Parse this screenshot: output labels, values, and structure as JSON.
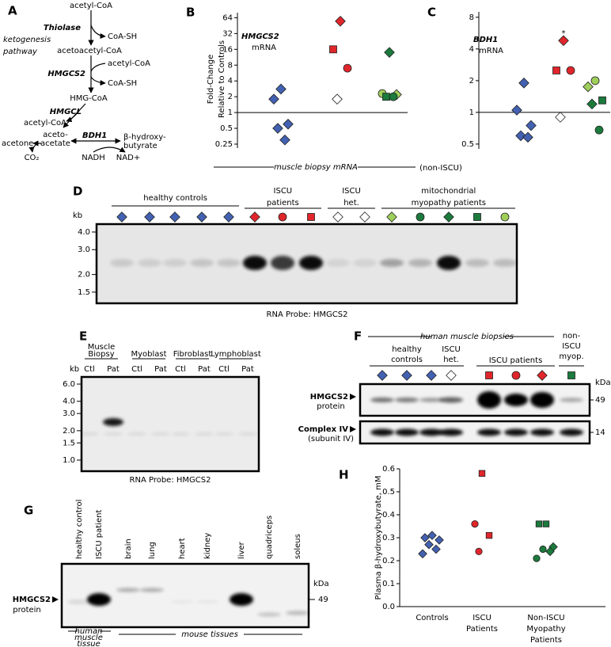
{
  "panel_a": {
    "label": "A",
    "title": "ketogenesis pathway",
    "steps": [
      "acetyl-CoA",
      "Thiolase",
      "CoA-SH",
      "acetoacetyl-CoA",
      "acetyl-CoA",
      "HMGCS2",
      "CoA-SH",
      "HMG-CoA",
      "HMGCL",
      "acetyl-CoA",
      "BDH1",
      "acetone",
      "aceto-acetate",
      "β-hydroxy-butyrate",
      "CO₂",
      "NADH",
      "NAD+"
    ]
  },
  "chart_data": [
    {
      "type": "scatter",
      "label": "B",
      "y_label": "Fold-Change Relative to Controls",
      "annotation": "HMGCS2",
      "annotation_sub": "mRNA",
      "log_y": true,
      "ylim": [
        0.21,
        80
      ],
      "yticks": [
        0.25,
        0.5,
        1,
        2,
        4,
        8,
        16,
        32,
        64
      ],
      "reference_line": 1,
      "categories": [
        null,
        null,
        null
      ],
      "points": [
        {
          "category": 0,
          "value": 2.8,
          "shape": "diamond",
          "color": "#4361b1"
        },
        {
          "category": 0,
          "value": 1.8,
          "shape": "diamond",
          "color": "#4361b1"
        },
        {
          "category": 0,
          "value": 0.6,
          "shape": "diamond",
          "color": "#4361b1"
        },
        {
          "category": 0,
          "value": 0.5,
          "shape": "diamond",
          "color": "#4361b1"
        },
        {
          "category": 0,
          "value": 0.3,
          "shape": "diamond",
          "color": "#4361b1"
        },
        {
          "category": 1,
          "value": 55,
          "shape": "diamond",
          "color": "#e0262c"
        },
        {
          "category": 1,
          "value": 16,
          "shape": "square",
          "color": "#e0262c"
        },
        {
          "category": 1,
          "value": 7,
          "shape": "circle",
          "color": "#e0262c"
        },
        {
          "category": 1,
          "value": 1.8,
          "shape": "diamond",
          "color": "#ffffff"
        },
        {
          "category": 2,
          "value": 14,
          "shape": "diamond",
          "color": "#1b7a3c"
        },
        {
          "category": 2,
          "value": 2.3,
          "shape": "circle",
          "color": "#9fcf5a"
        },
        {
          "category": 2,
          "value": 2.2,
          "shape": "diamond",
          "color": "#9fcf5a"
        },
        {
          "category": 2,
          "value": 2,
          "shape": "square",
          "color": "#1b7a3c"
        },
        {
          "category": 2,
          "value": 2,
          "shape": "circle",
          "color": "#1b7a3c"
        }
      ]
    },
    {
      "type": "scatter",
      "label": "C",
      "annotation": "BDH1",
      "annotation_sub": "mRNA",
      "star": "*",
      "log_y": true,
      "ylim": [
        0.45,
        9
      ],
      "yticks": [
        0.5,
        1,
        2,
        4,
        8
      ],
      "reference_line": 1,
      "categories": [
        null,
        null,
        null
      ],
      "points": [
        {
          "category": 0,
          "value": 1.9,
          "shape": "diamond",
          "color": "#4361b1"
        },
        {
          "category": 0,
          "value": 1.05,
          "shape": "diamond",
          "color": "#4361b1"
        },
        {
          "category": 0,
          "value": 0.75,
          "shape": "diamond",
          "color": "#4361b1"
        },
        {
          "category": 0,
          "value": 0.6,
          "shape": "diamond",
          "color": "#4361b1"
        },
        {
          "category": 0,
          "value": 0.58,
          "shape": "diamond",
          "color": "#4361b1"
        },
        {
          "category": 1,
          "value": 4.8,
          "shape": "diamond",
          "color": "#e0262c"
        },
        {
          "category": 1,
          "value": 2.5,
          "shape": "square",
          "color": "#e0262c"
        },
        {
          "category": 1,
          "value": 2.5,
          "shape": "circle",
          "color": "#e0262c"
        },
        {
          "category": 1,
          "value": 0.9,
          "shape": "diamond",
          "color": "#ffffff"
        },
        {
          "category": 2,
          "value": 2,
          "shape": "circle",
          "color": "#9fcf5a"
        },
        {
          "category": 2,
          "value": 1.75,
          "shape": "diamond",
          "color": "#9fcf5a"
        },
        {
          "category": 2,
          "value": 1.3,
          "shape": "square",
          "color": "#1b7a3c"
        },
        {
          "category": 2,
          "value": 1.2,
          "shape": "diamond",
          "color": "#1b7a3c"
        },
        {
          "category": 2,
          "value": 0.68,
          "shape": "circle",
          "color": "#1b7a3c"
        }
      ]
    },
    {
      "type": "scatter",
      "label": "H",
      "y_label": "Plasma β-hydroxybutyrate, mM",
      "ylim": [
        0,
        0.6
      ],
      "yticks": [
        {
          "value": 0,
          "label": "0.0"
        },
        0.1,
        0.2,
        0.3,
        0.4,
        0.5,
        0.6
      ],
      "categories": [
        "Controls",
        "ISCU Patients",
        "Non-ISCU Myopathy Patients"
      ],
      "points": [
        {
          "category": 0,
          "value": 0.31,
          "shape": "diamond",
          "color": "#4361b1"
        },
        {
          "category": 0,
          "value": 0.3,
          "shape": "diamond",
          "color": "#4361b1"
        },
        {
          "category": 0,
          "value": 0.29,
          "shape": "diamond",
          "color": "#4361b1"
        },
        {
          "category": 0,
          "value": 0.27,
          "shape": "diamond",
          "color": "#4361b1"
        },
        {
          "category": 0,
          "value": 0.25,
          "shape": "diamond",
          "color": "#4361b1"
        },
        {
          "category": 0,
          "value": 0.23,
          "shape": "diamond",
          "color": "#4361b1"
        },
        {
          "category": 1,
          "value": 0.58,
          "shape": "square",
          "color": "#e0262c"
        },
        {
          "category": 1,
          "value": 0.36,
          "shape": "circle",
          "color": "#e0262c"
        },
        {
          "category": 1,
          "value": 0.31,
          "shape": "square",
          "color": "#e0262c"
        },
        {
          "category": 1,
          "value": 0.24,
          "shape": "circle",
          "color": "#e0262c"
        },
        {
          "category": 2,
          "value": 0.36,
          "shape": "square",
          "color": "#1b7a3c"
        },
        {
          "category": 2,
          "value": 0.36,
          "shape": "square",
          "color": "#1b7a3c"
        },
        {
          "category": 2,
          "value": 0.26,
          "shape": "diamond",
          "color": "#1b7a3c"
        },
        {
          "category": 2,
          "value": 0.25,
          "shape": "circle",
          "color": "#1b7a3c"
        },
        {
          "category": 2,
          "value": 0.24,
          "shape": "diamond",
          "color": "#1b7a3c"
        },
        {
          "category": 2,
          "value": 0.21,
          "shape": "circle",
          "color": "#1b7a3c"
        }
      ]
    }
  ],
  "header": {
    "title": "muscle biopsy mRNA",
    "note": "(non-ISCU)"
  },
  "panel_d": {
    "label": "D",
    "axis_label": "kb",
    "log_y": true,
    "ylim": [
      1.25,
      4.55
    ],
    "yticks": [
      {
        "value": 4,
        "label": "4.0"
      },
      {
        "value": 3,
        "label": "3.0"
      },
      {
        "value": 2,
        "label": "2.0"
      },
      1.5
    ],
    "groups": [
      {
        "name": "healthy controls",
        "lanes": [
          {
            "shape": "diamond",
            "color": "#4361b1"
          },
          {
            "shape": "diamond",
            "color": "#4361b1"
          },
          {
            "shape": "diamond",
            "color": "#4361b1"
          },
          {
            "shape": "diamond",
            "color": "#4361b1"
          },
          {
            "shape": "diamond",
            "color": "#4361b1"
          }
        ]
      },
      {
        "name": "ISCU patients",
        "lanes": [
          {
            "shape": "diamond",
            "color": "#e0262c"
          },
          {
            "shape": "circle",
            "color": "#e0262c"
          },
          {
            "shape": "square",
            "color": "#e0262c"
          }
        ]
      },
      {
        "name": "ISCU het.",
        "lanes": [
          {
            "shape": "diamond",
            "color": "#ffffff"
          },
          {
            "shape": "diamond",
            "color": "#ffffff"
          }
        ]
      },
      {
        "name": "mitochondrial myopathy patients",
        "lanes": [
          {
            "shape": "diamond",
            "color": "#9fcf5a"
          },
          {
            "shape": "circle",
            "color": "#1b7a3c"
          },
          {
            "shape": "diamond",
            "color": "#1b7a3c"
          },
          {
            "shape": "square",
            "color": "#1b7a3c"
          },
          {
            "shape": "circle",
            "color": "#9fcf5a"
          }
        ]
      }
    ],
    "probe": "RNA Probe: HMGCS2"
  },
  "panel_e": {
    "label": "E",
    "axis_label": "kb",
    "log_y": true,
    "ylim": [
      0.77,
      7.1
    ],
    "yticks": [
      {
        "value": 6,
        "label": "6.0"
      },
      {
        "value": 4,
        "label": "4.0"
      },
      {
        "value": 3,
        "label": "3.0"
      },
      {
        "value": 2,
        "label": "2.0"
      },
      1.5,
      {
        "value": 1,
        "label": "1.0"
      }
    ],
    "groups": [
      {
        "name": "Muscle Biopsy",
        "lanes": [
          "Ctl",
          "Pat"
        ]
      },
      {
        "name": "Myoblast",
        "lanes": [
          "Ctl",
          "Pat"
        ]
      },
      {
        "name": "Fibroblast",
        "lanes": [
          "Ctl",
          "Pat"
        ]
      },
      {
        "name": "Lymphoblast",
        "lanes": [
          "Ctl",
          "Pat"
        ]
      }
    ],
    "probe": "RNA Probe: HMGCS2"
  },
  "panel_f": {
    "label": "F",
    "title": "human muscle biopsies",
    "unit": "kDa",
    "groups": [
      {
        "name": "healthy controls",
        "lanes": [
          {
            "shape": "diamond",
            "color": "#4361b1"
          },
          {
            "shape": "diamond",
            "color": "#4361b1"
          },
          {
            "shape": "diamond",
            "color": "#4361b1"
          }
        ]
      },
      {
        "name": "ISCU het.",
        "lanes": [
          {
            "shape": "diamond",
            "color": "#ffffff"
          }
        ]
      },
      {
        "name": "ISCU patients",
        "lanes": [
          {
            "shape": "square",
            "color": "#e0262c"
          },
          {
            "shape": "circle",
            "color": "#e0262c"
          },
          {
            "shape": "diamond",
            "color": "#e0262c"
          }
        ]
      },
      {
        "name": "non-ISCU myop.",
        "lanes": [
          {
            "shape": "square",
            "color": "#1b7a3c"
          }
        ]
      }
    ],
    "blots": [
      {
        "name": "HMGCS2",
        "sub": "protein",
        "size": 49
      },
      {
        "name": "Complex IV",
        "sub": "(subunit IV)",
        "size": 14
      }
    ]
  },
  "panel_g": {
    "label": "G",
    "unit": "kDa",
    "lanes": [
      "healthy control",
      "ISCU patient",
      "brain",
      "lung",
      "heart",
      "kidney",
      "liver",
      "quadriceps",
      "soleus"
    ],
    "blot": {
      "name": "HMGCS2",
      "sub": "protein",
      "size": 49
    },
    "groups": [
      "human muscle tissue",
      "mouse tissues"
    ]
  }
}
